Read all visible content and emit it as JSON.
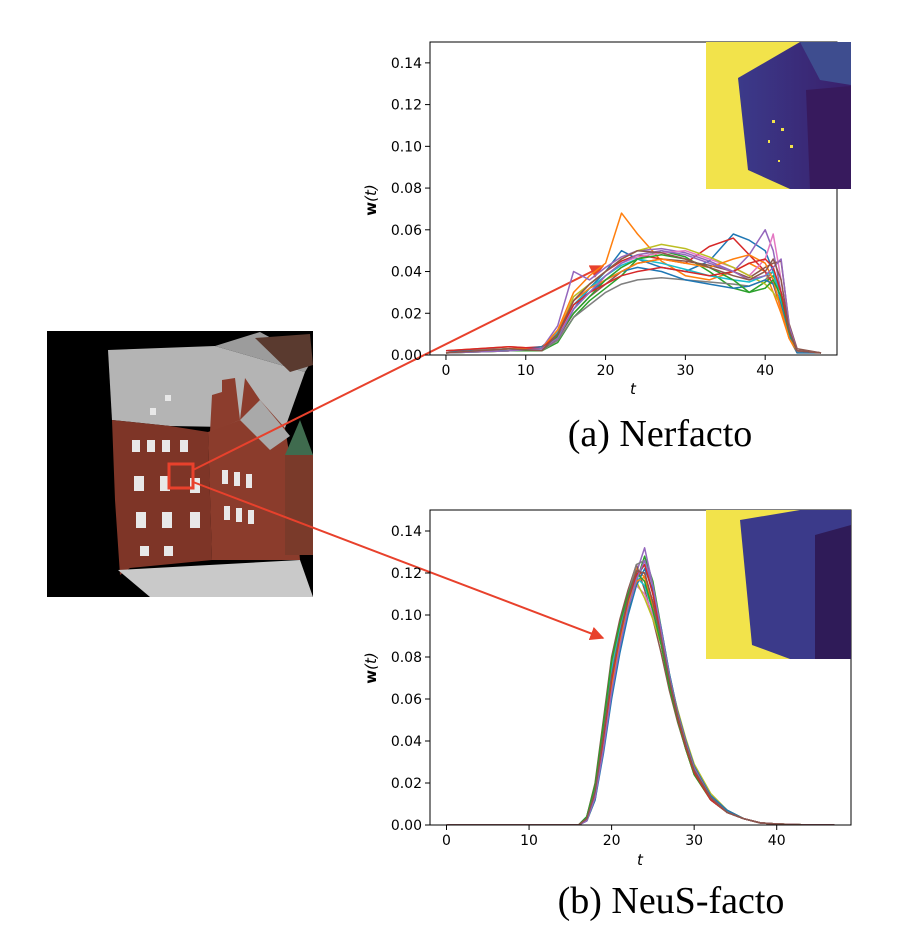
{
  "figure": {
    "captions": [
      "(a) Nerfacto",
      "(b) NeuS-facto"
    ],
    "ylabel_bold": "w",
    "ylabel_rest": "(t)",
    "xlabel": "t"
  },
  "colors": {
    "palette": [
      "#1f77b4",
      "#ff7f0e",
      "#2ca02c",
      "#d62728",
      "#9467bd",
      "#8c564b",
      "#e377c2",
      "#7f7f7f",
      "#bcbd22",
      "#17becf"
    ],
    "arrow": "#e8412c",
    "depth_far": "#f2e34b",
    "depth_near": "#3b3a8a",
    "brick": "#8a3a2a",
    "roof": "#b8b8b8"
  },
  "chart_data": [
    {
      "type": "line",
      "title": "(a) Nerfacto",
      "xlabel": "t",
      "ylabel": "w(t)",
      "xlim": [
        -2,
        49
      ],
      "ylim": [
        0,
        0.15
      ],
      "xticks": [
        0,
        10,
        20,
        30,
        40
      ],
      "yticks": [
        0.0,
        0.02,
        0.04,
        0.06,
        0.08,
        0.1,
        0.12,
        0.14
      ],
      "ytick_labels": [
        "0.00",
        "0.02",
        "0.04",
        "0.06",
        "0.08",
        "0.10",
        "0.12",
        "0.14"
      ],
      "grid": false,
      "series_count": 16,
      "x": [
        0,
        8,
        12,
        14,
        16,
        18,
        20,
        22,
        24,
        27,
        30,
        33,
        36,
        38,
        40,
        41,
        42,
        43,
        44,
        47
      ],
      "series": [
        {
          "values": [
            0.001,
            0.003,
            0.002,
            0.008,
            0.022,
            0.032,
            0.04,
            0.05,
            0.046,
            0.042,
            0.04,
            0.045,
            0.058,
            0.055,
            0.05,
            0.04,
            0.025,
            0.01,
            0.002,
            0.001
          ]
        },
        {
          "values": [
            0.002,
            0.004,
            0.003,
            0.012,
            0.03,
            0.038,
            0.044,
            0.068,
            0.058,
            0.045,
            0.038,
            0.036,
            0.04,
            0.044,
            0.04,
            0.03,
            0.02,
            0.008,
            0.001,
            0.001
          ]
        },
        {
          "values": [
            0.001,
            0.002,
            0.002,
            0.006,
            0.018,
            0.026,
            0.032,
            0.038,
            0.046,
            0.05,
            0.047,
            0.04,
            0.032,
            0.03,
            0.035,
            0.038,
            0.03,
            0.012,
            0.002,
            0.001
          ]
        },
        {
          "values": [
            0.001,
            0.003,
            0.004,
            0.01,
            0.026,
            0.034,
            0.04,
            0.045,
            0.048,
            0.046,
            0.044,
            0.052,
            0.056,
            0.048,
            0.04,
            0.034,
            0.022,
            0.009,
            0.002,
            0.001
          ]
        },
        {
          "values": [
            0.002,
            0.002,
            0.003,
            0.014,
            0.04,
            0.036,
            0.042,
            0.047,
            0.05,
            0.051,
            0.049,
            0.045,
            0.04,
            0.048,
            0.06,
            0.05,
            0.03,
            0.01,
            0.002,
            0.001
          ]
        },
        {
          "values": [
            0.001,
            0.003,
            0.002,
            0.008,
            0.02,
            0.028,
            0.034,
            0.04,
            0.044,
            0.046,
            0.045,
            0.043,
            0.04,
            0.037,
            0.042,
            0.044,
            0.045,
            0.015,
            0.003,
            0.001
          ]
        },
        {
          "values": [
            0.001,
            0.002,
            0.003,
            0.009,
            0.024,
            0.03,
            0.038,
            0.044,
            0.047,
            0.049,
            0.05,
            0.046,
            0.042,
            0.038,
            0.046,
            0.058,
            0.036,
            0.012,
            0.002,
            0.001
          ]
        },
        {
          "values": [
            0.002,
            0.003,
            0.002,
            0.007,
            0.018,
            0.024,
            0.03,
            0.034,
            0.036,
            0.037,
            0.036,
            0.035,
            0.034,
            0.033,
            0.036,
            0.04,
            0.03,
            0.012,
            0.002,
            0.001
          ]
        },
        {
          "values": [
            0.001,
            0.002,
            0.003,
            0.01,
            0.028,
            0.034,
            0.04,
            0.046,
            0.05,
            0.053,
            0.051,
            0.047,
            0.042,
            0.038,
            0.034,
            0.03,
            0.024,
            0.01,
            0.002,
            0.001
          ]
        },
        {
          "values": [
            0.001,
            0.003,
            0.002,
            0.011,
            0.024,
            0.032,
            0.038,
            0.043,
            0.046,
            0.044,
            0.041,
            0.038,
            0.036,
            0.035,
            0.038,
            0.04,
            0.026,
            0.01,
            0.002,
            0.001
          ]
        },
        {
          "values": [
            0.002,
            0.002,
            0.004,
            0.008,
            0.022,
            0.03,
            0.036,
            0.04,
            0.042,
            0.04,
            0.036,
            0.034,
            0.032,
            0.033,
            0.036,
            0.034,
            0.024,
            0.009,
            0.001,
            0.001
          ]
        },
        {
          "values": [
            0.001,
            0.003,
            0.003,
            0.012,
            0.026,
            0.032,
            0.036,
            0.04,
            0.044,
            0.046,
            0.044,
            0.042,
            0.046,
            0.048,
            0.044,
            0.036,
            0.022,
            0.008,
            0.002,
            0.001
          ]
        },
        {
          "values": [
            0.001,
            0.002,
            0.002,
            0.009,
            0.02,
            0.028,
            0.036,
            0.042,
            0.046,
            0.048,
            0.046,
            0.042,
            0.036,
            0.03,
            0.032,
            0.036,
            0.028,
            0.011,
            0.002,
            0.001
          ]
        },
        {
          "values": [
            0.002,
            0.004,
            0.003,
            0.01,
            0.024,
            0.03,
            0.034,
            0.038,
            0.04,
            0.042,
            0.04,
            0.038,
            0.04,
            0.044,
            0.046,
            0.042,
            0.03,
            0.012,
            0.002,
            0.001
          ]
        },
        {
          "values": [
            0.001,
            0.002,
            0.003,
            0.008,
            0.022,
            0.03,
            0.038,
            0.044,
            0.048,
            0.05,
            0.048,
            0.044,
            0.04,
            0.036,
            0.038,
            0.042,
            0.046,
            0.014,
            0.002,
            0.001
          ]
        },
        {
          "values": [
            0.001,
            0.003,
            0.002,
            0.01,
            0.026,
            0.034,
            0.04,
            0.046,
            0.05,
            0.049,
            0.046,
            0.042,
            0.038,
            0.036,
            0.04,
            0.046,
            0.036,
            0.012,
            0.002,
            0.001
          ]
        }
      ]
    },
    {
      "type": "line",
      "title": "(b) NeuS-facto",
      "xlabel": "t",
      "ylabel": "w(t)",
      "xlim": [
        -2,
        49
      ],
      "ylim": [
        0,
        0.15
      ],
      "xticks": [
        0,
        10,
        20,
        30,
        40
      ],
      "yticks": [
        0.0,
        0.02,
        0.04,
        0.06,
        0.08,
        0.1,
        0.12,
        0.14
      ],
      "ytick_labels": [
        "0.00",
        "0.02",
        "0.04",
        "0.06",
        "0.08",
        "0.10",
        "0.12",
        "0.14"
      ],
      "grid": false,
      "series_count": 16,
      "x": [
        0,
        10,
        16,
        17,
        18,
        19,
        20,
        21,
        22,
        23,
        24,
        25,
        26,
        27,
        28,
        29,
        30,
        32,
        34,
        36,
        38,
        40,
        43,
        47
      ],
      "series": [
        {
          "values": [
            0,
            0,
            0.0,
            0.003,
            0.015,
            0.04,
            0.068,
            0.088,
            0.105,
            0.118,
            0.124,
            0.11,
            0.09,
            0.07,
            0.052,
            0.038,
            0.026,
            0.013,
            0.006,
            0.003,
            0.001,
            0.0005,
            0.0001,
            0
          ]
        },
        {
          "values": [
            0,
            0,
            0.0,
            0.004,
            0.018,
            0.046,
            0.075,
            0.094,
            0.11,
            0.122,
            0.118,
            0.104,
            0.086,
            0.066,
            0.05,
            0.036,
            0.024,
            0.012,
            0.006,
            0.003,
            0.001,
            0.0005,
            0.0001,
            0
          ]
        },
        {
          "values": [
            0,
            0,
            0.0,
            0.002,
            0.012,
            0.036,
            0.062,
            0.084,
            0.102,
            0.116,
            0.128,
            0.116,
            0.094,
            0.072,
            0.054,
            0.04,
            0.028,
            0.014,
            0.007,
            0.003,
            0.001,
            0.0005,
            0.0001,
            0
          ]
        },
        {
          "values": [
            0,
            0,
            0.0,
            0.003,
            0.016,
            0.042,
            0.07,
            0.09,
            0.108,
            0.12,
            0.12,
            0.106,
            0.088,
            0.068,
            0.051,
            0.037,
            0.025,
            0.012,
            0.006,
            0.003,
            0.001,
            0.0005,
            0.0001,
            0
          ]
        },
        {
          "values": [
            0,
            0,
            0.0,
            0.003,
            0.014,
            0.038,
            0.066,
            0.088,
            0.106,
            0.12,
            0.132,
            0.114,
            0.092,
            0.07,
            0.052,
            0.038,
            0.026,
            0.013,
            0.006,
            0.003,
            0.001,
            0.0005,
            0.0001,
            0
          ]
        },
        {
          "values": [
            0,
            0,
            0.0,
            0.004,
            0.02,
            0.05,
            0.08,
            0.098,
            0.112,
            0.124,
            0.112,
            0.098,
            0.082,
            0.064,
            0.049,
            0.036,
            0.025,
            0.012,
            0.006,
            0.003,
            0.001,
            0.0005,
            0.0001,
            0
          ]
        },
        {
          "values": [
            0,
            0,
            0.0,
            0.002,
            0.013,
            0.037,
            0.064,
            0.086,
            0.104,
            0.114,
            0.11,
            0.1,
            0.086,
            0.07,
            0.054,
            0.04,
            0.028,
            0.014,
            0.007,
            0.003,
            0.001,
            0.0005,
            0.0001,
            0
          ]
        },
        {
          "values": [
            0,
            0,
            0.0,
            0.003,
            0.016,
            0.044,
            0.072,
            0.092,
            0.11,
            0.124,
            0.126,
            0.11,
            0.09,
            0.068,
            0.05,
            0.036,
            0.024,
            0.012,
            0.006,
            0.003,
            0.001,
            0.0005,
            0.0001,
            0
          ]
        },
        {
          "values": [
            0,
            0,
            0.0,
            0.003,
            0.015,
            0.04,
            0.068,
            0.09,
            0.106,
            0.116,
            0.108,
            0.098,
            0.086,
            0.07,
            0.055,
            0.041,
            0.029,
            0.015,
            0.007,
            0.003,
            0.001,
            0.0005,
            0.0001,
            0
          ]
        },
        {
          "values": [
            0,
            0,
            0.0,
            0.004,
            0.017,
            0.045,
            0.074,
            0.093,
            0.108,
            0.118,
            0.114,
            0.102,
            0.088,
            0.068,
            0.052,
            0.038,
            0.026,
            0.013,
            0.006,
            0.003,
            0.001,
            0.0005,
            0.0001,
            0
          ]
        },
        {
          "values": [
            0,
            0,
            0.0,
            0.002,
            0.012,
            0.034,
            0.06,
            0.082,
            0.1,
            0.114,
            0.122,
            0.112,
            0.094,
            0.072,
            0.054,
            0.04,
            0.028,
            0.014,
            0.007,
            0.003,
            0.001,
            0.0005,
            0.0001,
            0
          ]
        },
        {
          "values": [
            0,
            0,
            0.0,
            0.003,
            0.014,
            0.038,
            0.066,
            0.088,
            0.104,
            0.116,
            0.118,
            0.106,
            0.09,
            0.07,
            0.053,
            0.039,
            0.027,
            0.013,
            0.006,
            0.003,
            0.001,
            0.0005,
            0.0001,
            0
          ]
        },
        {
          "values": [
            0,
            0,
            0.0,
            0.004,
            0.019,
            0.048,
            0.078,
            0.096,
            0.11,
            0.12,
            0.116,
            0.102,
            0.086,
            0.066,
            0.05,
            0.036,
            0.024,
            0.012,
            0.006,
            0.003,
            0.001,
            0.0005,
            0.0001,
            0
          ]
        },
        {
          "values": [
            0,
            0,
            0.0,
            0.003,
            0.015,
            0.041,
            0.069,
            0.09,
            0.107,
            0.119,
            0.124,
            0.11,
            0.09,
            0.069,
            0.051,
            0.037,
            0.025,
            0.012,
            0.006,
            0.003,
            0.001,
            0.0005,
            0.0001,
            0
          ]
        },
        {
          "values": [
            0,
            0,
            0.0,
            0.002,
            0.013,
            0.036,
            0.063,
            0.085,
            0.103,
            0.117,
            0.126,
            0.114,
            0.093,
            0.071,
            0.053,
            0.039,
            0.027,
            0.013,
            0.006,
            0.003,
            0.001,
            0.0005,
            0.0001,
            0
          ]
        },
        {
          "values": [
            0,
            0,
            0.0,
            0.003,
            0.016,
            0.043,
            0.071,
            0.091,
            0.108,
            0.121,
            0.12,
            0.106,
            0.089,
            0.069,
            0.052,
            0.038,
            0.026,
            0.013,
            0.006,
            0.003,
            0.001,
            0.0005,
            0.0001,
            0
          ]
        }
      ]
    }
  ]
}
